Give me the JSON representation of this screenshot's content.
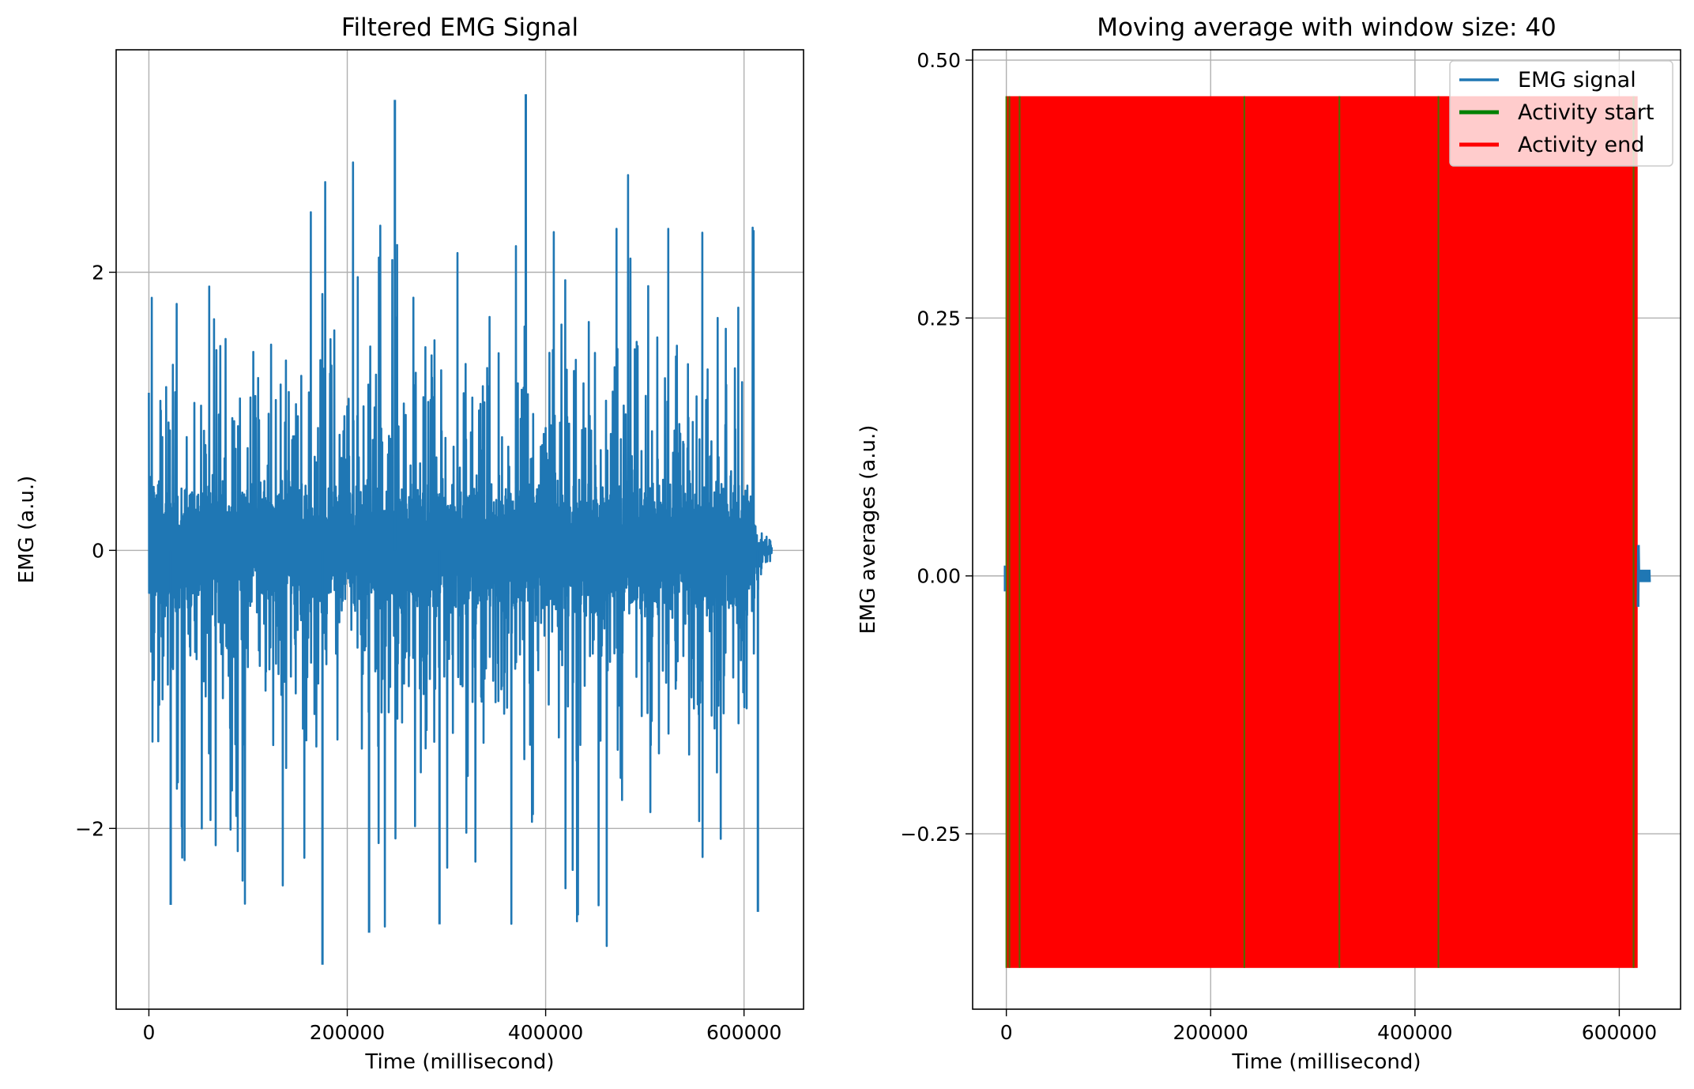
{
  "chart_data": [
    {
      "type": "line",
      "title": "Filtered EMG Signal",
      "xlabel": "Time (millisecond)",
      "ylabel": "EMG (a.u.)",
      "xlim": [
        -33000,
        660000
      ],
      "ylim": [
        -3.3,
        3.6
      ],
      "xticks": [
        0,
        200000,
        400000,
        600000
      ],
      "xtick_labels": [
        "0",
        "200000",
        "400000",
        "600000"
      ],
      "yticks": [
        -2,
        0,
        2
      ],
      "ytick_labels": [
        "−2",
        "0",
        "2"
      ],
      "grid": true,
      "series": [
        {
          "color": "#1f77b4",
          "description": "dense oscillating EMG trace from 0 to ~628000 ms",
          "approx_envelope": {
            "max": 3.28,
            "min": -2.98
          },
          "x_range": [
            0,
            628000
          ]
        }
      ]
    },
    {
      "type": "line",
      "title": "Moving average with window size: 40",
      "xlabel": "Time (millisecond)",
      "ylabel": "EMG averages (a.u.)",
      "xlim": [
        -33000,
        660000
      ],
      "ylim": [
        -0.42,
        0.51
      ],
      "xticks": [
        0,
        200000,
        400000,
        600000
      ],
      "xtick_labels": [
        "0",
        "200000",
        "400000",
        "600000"
      ],
      "yticks": [
        -0.25,
        0.0,
        0.25,
        0.5
      ],
      "ytick_labels": [
        "−0.25",
        "0.00",
        "0.25",
        "0.50"
      ],
      "grid": true,
      "legend": {
        "placement": "upper-right",
        "entries": [
          {
            "label": "EMG signal",
            "color": "#1f77b4"
          },
          {
            "label": "Activity start",
            "color": "#008000"
          },
          {
            "label": "Activity end",
            "color": "#ff0000"
          }
        ]
      },
      "activity_band": {
        "x_start": 0,
        "x_end": 618000,
        "y_min": -0.38,
        "y_max": 0.465,
        "color": "#ff0000"
      },
      "activity_start_markers": [
        0,
        3000,
        13000,
        233000,
        326000,
        423000,
        614000
      ],
      "signal_tail": {
        "x_start": 618000,
        "x_end": 630000,
        "color": "#1f77b4"
      }
    }
  ]
}
